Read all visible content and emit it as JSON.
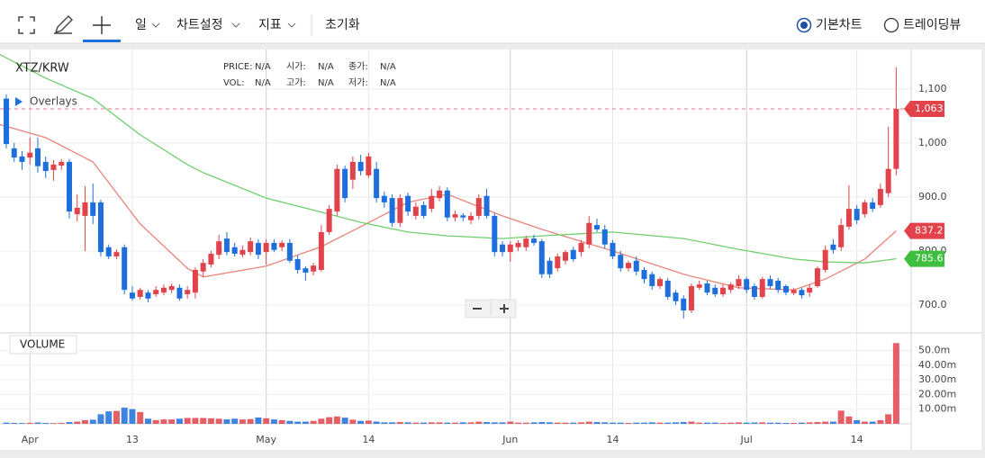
{
  "toolbar": {
    "items": [
      "일",
      "차트설정",
      "지표",
      "초기화"
    ],
    "radio": [
      {
        "label": "기본차트",
        "selected": true
      },
      {
        "label": "트레이딩뷰",
        "selected": false
      }
    ]
  },
  "chart_data": {
    "type": "candlestick",
    "title": "XTZ/KRW",
    "info": [
      [
        {
          "label": "PRICE:",
          "value": "N/A"
        },
        {
          "label": "시가:",
          "value": "N/A"
        },
        {
          "label": "종가:",
          "value": "N/A"
        }
      ],
      [
        {
          "label": "VOL:",
          "value": "N/A"
        },
        {
          "label": "고가:",
          "value": "N/A"
        },
        {
          "label": "저가:",
          "value": "N/A"
        }
      ]
    ],
    "overlays_label": "Overlays",
    "up_color": "#e2434b",
    "down_color": "#1e6fdc",
    "x": [
      -3,
      -2,
      -1,
      0,
      1,
      2,
      3,
      4,
      5,
      6,
      7,
      8,
      9,
      10,
      11,
      12,
      13,
      14,
      15,
      16,
      17,
      18,
      19,
      20,
      21,
      22,
      23,
      24,
      25,
      26,
      27,
      28,
      29,
      30,
      31,
      32,
      33,
      34,
      35,
      36,
      37,
      38,
      39,
      40,
      41,
      42,
      43,
      44,
      45,
      46,
      47,
      48,
      49,
      50,
      51,
      52,
      53,
      54,
      55,
      56,
      57,
      58,
      59,
      60,
      61,
      62,
      63,
      64,
      65,
      66,
      67,
      68,
      69,
      70,
      71,
      72,
      73,
      74,
      75,
      76,
      77,
      78,
      79,
      80,
      81,
      82,
      83,
      84,
      85,
      86,
      87,
      88,
      89,
      90,
      91,
      92,
      93,
      94,
      95,
      96,
      97,
      98,
      99,
      100,
      101,
      102,
      103,
      104,
      105,
      106,
      107,
      108,
      109,
      110
    ],
    "ohlc": [
      [
        1082,
        1090,
        990,
        998
      ],
      [
        990,
        1000,
        965,
        973
      ],
      [
        975,
        985,
        950,
        965
      ],
      [
        973,
        1010,
        960,
        982
      ],
      [
        990,
        1010,
        945,
        957
      ],
      [
        965,
        975,
        935,
        948
      ],
      [
        950,
        968,
        930,
        960
      ],
      [
        958,
        970,
        950,
        965
      ],
      [
        965,
        970,
        860,
        873
      ],
      [
        868,
        905,
        855,
        880
      ],
      [
        865,
        920,
        800,
        890
      ],
      [
        890,
        925,
        850,
        865
      ],
      [
        890,
        895,
        790,
        798
      ],
      [
        807,
        812,
        785,
        790
      ],
      [
        790,
        803,
        785,
        798
      ],
      [
        807,
        812,
        720,
        728
      ],
      [
        723,
        735,
        708,
        712
      ],
      [
        715,
        732,
        710,
        728
      ],
      [
        723,
        728,
        705,
        712
      ],
      [
        720,
        735,
        715,
        728
      ],
      [
        723,
        738,
        718,
        732
      ],
      [
        728,
        740,
        722,
        735
      ],
      [
        732,
        738,
        708,
        712
      ],
      [
        720,
        735,
        712,
        728
      ],
      [
        723,
        770,
        712,
        765
      ],
      [
        762,
        785,
        752,
        778
      ],
      [
        775,
        800,
        770,
        795
      ],
      [
        793,
        830,
        785,
        818
      ],
      [
        823,
        835,
        792,
        798
      ],
      [
        807,
        815,
        790,
        795
      ],
      [
        793,
        810,
        788,
        802
      ],
      [
        798,
        825,
        792,
        818
      ],
      [
        815,
        822,
        785,
        793
      ],
      [
        798,
        822,
        775,
        815
      ],
      [
        815,
        822,
        798,
        802
      ],
      [
        807,
        820,
        800,
        815
      ],
      [
        815,
        822,
        778,
        782
      ],
      [
        785,
        792,
        758,
        765
      ],
      [
        768,
        772,
        745,
        760
      ],
      [
        762,
        778,
        755,
        773
      ],
      [
        765,
        848,
        762,
        835
      ],
      [
        835,
        885,
        830,
        878
      ],
      [
        873,
        960,
        865,
        952
      ],
      [
        952,
        958,
        890,
        898
      ],
      [
        932,
        975,
        915,
        965
      ],
      [
        965,
        978,
        940,
        948
      ],
      [
        940,
        982,
        935,
        975
      ],
      [
        952,
        965,
        890,
        898
      ],
      [
        902,
        910,
        880,
        890
      ],
      [
        898,
        905,
        845,
        852
      ],
      [
        852,
        905,
        845,
        898
      ],
      [
        902,
        908,
        865,
        873
      ],
      [
        865,
        890,
        858,
        882
      ],
      [
        885,
        892,
        860,
        865
      ],
      [
        878,
        915,
        872,
        902
      ],
      [
        898,
        920,
        892,
        912
      ],
      [
        912,
        918,
        855,
        862
      ],
      [
        862,
        875,
        855,
        868
      ],
      [
        866,
        870,
        855,
        862
      ],
      [
        857,
        872,
        850,
        865
      ],
      [
        865,
        905,
        858,
        898
      ],
      [
        902,
        915,
        860,
        865
      ],
      [
        865,
        870,
        790,
        798
      ],
      [
        812,
        818,
        790,
        798
      ],
      [
        798,
        818,
        780,
        812
      ],
      [
        807,
        820,
        800,
        815
      ],
      [
        807,
        828,
        800,
        823
      ],
      [
        823,
        830,
        810,
        815
      ],
      [
        818,
        822,
        750,
        757
      ],
      [
        782,
        788,
        750,
        757
      ],
      [
        768,
        795,
        762,
        790
      ],
      [
        782,
        802,
        775,
        798
      ],
      [
        802,
        808,
        780,
        785
      ],
      [
        798,
        820,
        790,
        815
      ],
      [
        812,
        865,
        805,
        852
      ],
      [
        848,
        860,
        835,
        840
      ],
      [
        840,
        848,
        805,
        812
      ],
      [
        815,
        820,
        785,
        790
      ],
      [
        793,
        800,
        762,
        768
      ],
      [
        768,
        782,
        762,
        778
      ],
      [
        782,
        790,
        755,
        762
      ],
      [
        765,
        770,
        740,
        748
      ],
      [
        757,
        762,
        728,
        735
      ],
      [
        735,
        752,
        730,
        748
      ],
      [
        745,
        750,
        710,
        715
      ],
      [
        723,
        728,
        700,
        707
      ],
      [
        712,
        718,
        675,
        690
      ],
      [
        690,
        740,
        685,
        735
      ],
      [
        732,
        745,
        728,
        738
      ],
      [
        740,
        745,
        718,
        723
      ],
      [
        732,
        738,
        715,
        720
      ],
      [
        720,
        738,
        715,
        732
      ],
      [
        728,
        742,
        722,
        738
      ],
      [
        735,
        755,
        730,
        748
      ],
      [
        748,
        752,
        722,
        728
      ],
      [
        735,
        740,
        710,
        715
      ],
      [
        715,
        752,
        712,
        748
      ],
      [
        748,
        755,
        730,
        735
      ],
      [
        745,
        750,
        722,
        728
      ],
      [
        735,
        738,
        718,
        723
      ],
      [
        722,
        732,
        718,
        728
      ],
      [
        728,
        732,
        712,
        718
      ],
      [
        723,
        738,
        715,
        732
      ],
      [
        735,
        772,
        732,
        768
      ],
      [
        765,
        810,
        760,
        802
      ],
      [
        812,
        822,
        795,
        802
      ],
      [
        807,
        860,
        800,
        848
      ],
      [
        845,
        922,
        840,
        878
      ],
      [
        878,
        885,
        850,
        857
      ],
      [
        868,
        895,
        862,
        890
      ],
      [
        890,
        898,
        872,
        878
      ],
      [
        885,
        925,
        880,
        915
      ],
      [
        907,
        1030,
        900,
        952
      ],
      [
        952,
        1140,
        940,
        1063
      ]
    ],
    "xlim": [
      -3.8,
      111.9
    ],
    "xticks": [
      {
        "value": 0,
        "label": "Apr"
      },
      13,
      {
        "value": 30,
        "label": "May"
      },
      {
        "value": 43,
        "label": "14"
      },
      {
        "value": 61,
        "label": "Jun"
      },
      {
        "value": 74,
        "label": "14"
      },
      {
        "value": 91,
        "label": "Jul"
      },
      {
        "value": 105,
        "label": "14"
      }
    ],
    "ylim": [
      650,
      1173
    ],
    "yticks": [
      {
        "value": 700,
        "label": "700.0"
      },
      {
        "value": 800,
        "label": "800.0"
      },
      {
        "value": 900,
        "label": "900.0"
      },
      {
        "value": 1000,
        "label": "1,000"
      },
      {
        "value": 1100,
        "label": "1,100"
      }
    ],
    "price_line": {
      "value": 1063,
      "label": "1,063"
    },
    "overlays": [
      {
        "color": "#e8857c",
        "x": [
          -4,
          2,
          8,
          14,
          20,
          22,
          30,
          37,
          42,
          48,
          53,
          60,
          65,
          74,
          83,
          90,
          97,
          101,
          106,
          110
        ],
        "values": [
          1035,
          1010,
          965,
          850,
          768,
          752,
          772,
          808,
          845,
          890,
          905,
          865,
          840,
          800,
          757,
          732,
          728,
          748,
          785,
          837.2
        ]
      },
      {
        "color": "#6fcf6f",
        "x": [
          -4,
          2,
          8,
          14,
          20,
          22,
          30,
          37,
          42,
          48,
          53,
          60,
          65,
          74,
          83,
          90,
          97,
          101,
          106,
          110
        ],
        "values": [
          1165,
          1120,
          1082,
          1015,
          960,
          945,
          898,
          872,
          853,
          835,
          828,
          823,
          828,
          835,
          823,
          803,
          785,
          780,
          778,
          785.6
        ]
      }
    ],
    "volume": {
      "title": "VOLUME",
      "values": [
        0.8,
        0.6,
        0.5,
        0.7,
        0.9,
        0.6,
        0.5,
        0.6,
        1.2,
        1.5,
        2.5,
        2.8,
        6.5,
        8.5,
        8.8,
        11,
        10,
        8,
        3.5,
        2.5,
        3,
        3,
        3.5,
        4,
        4,
        4,
        3.8,
        3.5,
        3,
        3.5,
        3,
        3.2,
        4.3,
        3.8,
        3,
        2.5,
        2,
        1.5,
        1.5,
        2,
        3.5,
        4.5,
        5,
        4.2,
        2.8,
        2,
        2.2,
        1.5,
        1,
        1,
        1.2,
        1,
        0.8,
        0.8,
        1,
        1,
        0.8,
        0.8,
        1,
        1,
        1.5,
        1.2,
        1,
        1,
        1.5,
        0.8,
        0.8,
        1,
        1.2,
        1,
        0.8,
        0.8,
        0.8,
        1,
        1.5,
        1.2,
        1,
        0.8,
        0.8,
        0.6,
        0.8,
        0.8,
        1,
        0.8,
        0.8,
        1,
        1.2,
        1.5,
        0.8,
        0.8,
        0.8,
        0.6,
        0.8,
        1,
        0.8,
        0.9,
        1,
        0.8,
        0.8,
        0.6,
        0.6,
        0.8,
        1,
        1.2,
        1.5,
        1.5,
        9,
        5,
        2.5,
        1.5,
        1.5,
        2.5,
        6.5,
        55
      ],
      "ylim": [
        0,
        60.7
      ],
      "yticks": [
        {
          "value": 10,
          "label": "10.00m"
        },
        {
          "value": 20,
          "label": "20.00m"
        },
        {
          "value": 30,
          "label": "30.00m"
        },
        {
          "value": 40,
          "label": "40.00m"
        },
        {
          "value": 50,
          "label": "50.0m"
        }
      ]
    }
  }
}
